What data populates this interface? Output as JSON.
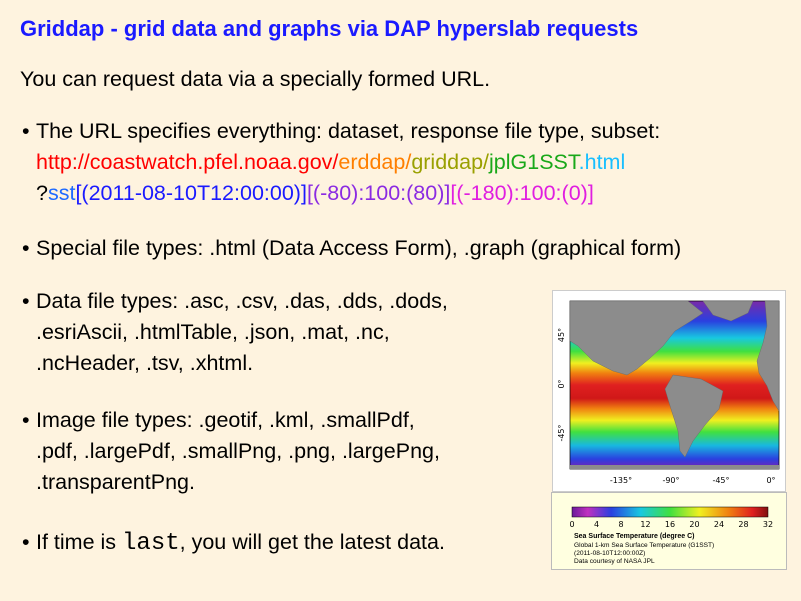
{
  "slide": {
    "title": "Griddap - grid data and graphs via DAP hyperslab requests",
    "intro": "You can request data via a specially formed URL.",
    "bullet_glyph": "•"
  },
  "url_bullet": {
    "text": "The URL specifies everything: dataset, response file type, subset:",
    "url_parts": {
      "base": "http://coastwatch.pfel.noaa.gov/",
      "erddap": "erddap/",
      "griddap": "griddap/",
      "dataset": "jplG1SST",
      "ext": ".html",
      "q": "?",
      "var": "sst",
      "dim1": "[(2011-08-10T12:00:00)]",
      "dim2_open": "[(",
      "dim2_start": "-80",
      "dim2_mid": "):100:(",
      "dim2_stop": "80",
      "dim2_close": ")]",
      "dim3_open": "[(",
      "dim3_start": "-180",
      "dim3_mid": "):100:(",
      "dim3_stop": "0",
      "dim3_close": ")]"
    }
  },
  "special_bullet": "Special file types: .html (Data Access Form), .graph (graphical form)",
  "data_bullet": {
    "line1": "Data file types: .asc, .csv, .das, .dds, .dods,",
    "line2": ".esriAscii, .htmlTable, .json, .mat, .nc,",
    "line3": ".ncHeader, .tsv, .xhtml."
  },
  "image_bullet": {
    "line1": "Image file types: .geotif, .kml, .smallPdf,",
    "line2": ".pdf, .largePdf, .smallPng, .png, .largePng,",
    "line3": ".transparentPng."
  },
  "time_bullet": {
    "before": "If time is ",
    "code": "last",
    "after": ", you will get the latest data."
  },
  "map": {
    "y_ticks": [
      "45°",
      "0°",
      "-45°"
    ],
    "x_ticks": [
      "-135°",
      "-90°",
      "-45°",
      "0°"
    ]
  },
  "legend": {
    "ticks": [
      "0",
      "4",
      "8",
      "12",
      "16",
      "20",
      "24",
      "28",
      "32"
    ],
    "title": "Sea Surface Temperature (degree C)",
    "line1": "Global 1-km Sea Surface Temperature (G1SST)",
    "line2": "(2011-08-10T12:00:00Z)",
    "line3": "Data courtesy of NASA JPL"
  }
}
